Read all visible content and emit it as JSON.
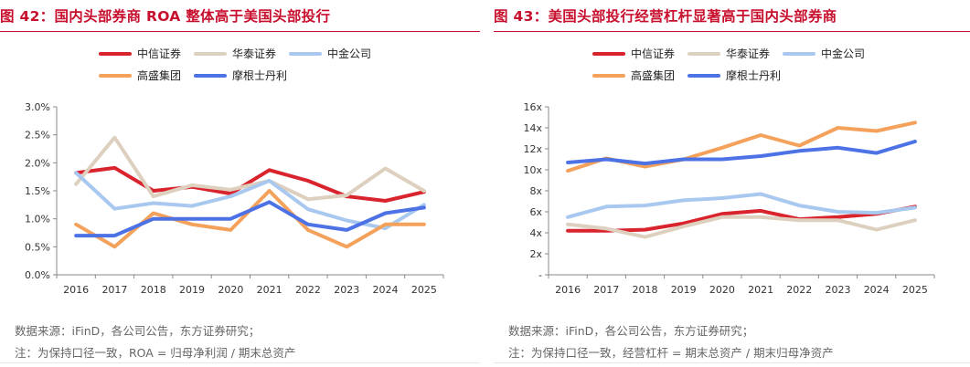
{
  "colors": {
    "中信证券": "#d9232d",
    "华泰证券": "#ddd0bf",
    "中金公司": "#a9c8f0",
    "高盛集团": "#f4a15c",
    "摩根士丹利": "#4c72e6"
  },
  "chart_data": [
    {
      "type": "line",
      "title": "图 42：国内头部券商 ROA 整体高于美国头部投行",
      "categories": [
        "2016",
        "2017",
        "2018",
        "2019",
        "2020",
        "2021",
        "2022",
        "2023",
        "2024",
        "2025"
      ],
      "yticks": [
        "0.0%",
        "0.5%",
        "1.0%",
        "1.5%",
        "2.0%",
        "2.5%",
        "3.0%"
      ],
      "ylim": [
        0,
        3.0
      ],
      "legend": [
        "中信证券",
        "华泰证券",
        "中金公司",
        "高盛集团",
        "摩根士丹利"
      ],
      "series": [
        {
          "name": "中信证券",
          "values": [
            1.82,
            1.91,
            1.5,
            1.57,
            1.45,
            1.87,
            1.68,
            1.4,
            1.32,
            1.48
          ]
        },
        {
          "name": "华泰证券",
          "values": [
            1.62,
            2.45,
            1.4,
            1.6,
            1.52,
            1.68,
            1.35,
            1.42,
            1.9,
            1.5
          ]
        },
        {
          "name": "中金公司",
          "values": [
            1.82,
            1.18,
            1.28,
            1.23,
            1.4,
            1.68,
            1.17,
            0.97,
            0.83,
            1.25
          ]
        },
        {
          "name": "高盛集团",
          "values": [
            0.9,
            0.5,
            1.1,
            0.9,
            0.8,
            1.5,
            0.8,
            0.5,
            0.9,
            0.9
          ]
        },
        {
          "name": "摩根士丹利",
          "values": [
            0.7,
            0.7,
            1.0,
            1.0,
            1.0,
            1.3,
            0.9,
            0.8,
            1.1,
            1.2
          ]
        }
      ],
      "source": "数据来源：iFinD，各公司公告，东方证券研究；",
      "note": "注：为保持口径一致，ROA = 归母净利润 / 期末总资产"
    },
    {
      "type": "line",
      "title": "图 43：美国头部投行经营杠杆显著高于国内头部券商",
      "categories": [
        "2016",
        "2017",
        "2018",
        "2019",
        "2020",
        "2021",
        "2022",
        "2023",
        "2024",
        "2025"
      ],
      "yticks": [
        "-",
        "2x",
        "4x",
        "6x",
        "8x",
        "10x",
        "12x",
        "14x",
        "16x"
      ],
      "ylim": [
        0,
        16
      ],
      "legend": [
        "中信证券",
        "华泰证券",
        "中金公司",
        "高盛集团",
        "摩根士丹利"
      ],
      "series": [
        {
          "name": "中信证券",
          "values": [
            4.2,
            4.2,
            4.3,
            4.9,
            5.8,
            6.1,
            5.3,
            5.5,
            5.8,
            6.5
          ]
        },
        {
          "name": "华泰证券",
          "values": [
            4.8,
            4.4,
            3.6,
            4.6,
            5.5,
            5.5,
            5.2,
            5.2,
            4.3,
            5.2
          ]
        },
        {
          "name": "中金公司",
          "values": [
            5.5,
            6.5,
            6.6,
            7.1,
            7.3,
            7.7,
            6.6,
            6.0,
            5.9,
            6.4
          ]
        },
        {
          "name": "高盛集团",
          "values": [
            9.9,
            11.1,
            10.3,
            11.0,
            12.1,
            13.3,
            12.3,
            14.0,
            13.7,
            14.5
          ]
        },
        {
          "name": "摩根士丹利",
          "values": [
            10.7,
            11.0,
            10.6,
            11.0,
            11.0,
            11.3,
            11.8,
            12.1,
            11.6,
            12.7
          ]
        }
      ],
      "source": "数据来源：iFinD，各公司公告，东方证券研究；",
      "note": "注：为保持口径一致，经营杠杆 = 期末总资产 / 期末归母净资产"
    }
  ]
}
